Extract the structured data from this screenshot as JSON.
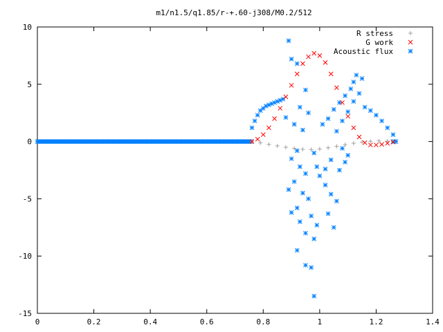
{
  "chart_data": {
    "type": "scatter",
    "title": "m1/n1.5/q1.85/r-+.60-j308/M0.2/512",
    "xlim": [
      0,
      1.4
    ],
    "ylim": [
      -15,
      10
    ],
    "xticks": [
      "0",
      "0.2",
      "0.4",
      "0.6",
      "0.8",
      "1",
      "1.2",
      "1.4"
    ],
    "yticks": [
      "10",
      "5",
      "0",
      "-5",
      "-10",
      "-15"
    ],
    "grid": false,
    "legend_position": "top-right",
    "series": [
      {
        "name": "R stress",
        "marker": "plus",
        "color": "#a0a0a0",
        "points": [
          [
            0.76,
            0.0
          ],
          [
            0.79,
            -0.12
          ],
          [
            0.82,
            -0.25
          ],
          [
            0.85,
            -0.38
          ],
          [
            0.88,
            -0.5
          ],
          [
            0.91,
            -0.6
          ],
          [
            0.94,
            -0.68
          ],
          [
            0.97,
            -0.7
          ],
          [
            1.0,
            -0.65
          ],
          [
            1.03,
            -0.55
          ],
          [
            1.06,
            -0.42
          ],
          [
            1.09,
            -0.28
          ],
          [
            1.12,
            -0.15
          ],
          [
            1.15,
            -0.05
          ],
          [
            1.18,
            0.02
          ],
          [
            1.21,
            0.05
          ],
          [
            1.24,
            0.04
          ],
          [
            1.26,
            0.02
          ]
        ]
      },
      {
        "name": "G work",
        "marker": "cross",
        "color": "#ff0000",
        "points": [
          [
            0.76,
            0.0
          ],
          [
            0.78,
            0.2
          ],
          [
            0.8,
            0.6
          ],
          [
            0.82,
            1.2
          ],
          [
            0.84,
            2.0
          ],
          [
            0.86,
            2.9
          ],
          [
            0.88,
            3.9
          ],
          [
            0.9,
            4.9
          ],
          [
            0.92,
            5.9
          ],
          [
            0.94,
            6.8
          ],
          [
            0.96,
            7.4
          ],
          [
            0.98,
            7.7
          ],
          [
            1.0,
            7.5
          ],
          [
            1.02,
            6.9
          ],
          [
            1.04,
            5.9
          ],
          [
            1.06,
            4.7
          ],
          [
            1.08,
            3.4
          ],
          [
            1.1,
            2.2
          ],
          [
            1.12,
            1.2
          ],
          [
            1.14,
            0.4
          ],
          [
            1.16,
            -0.1
          ],
          [
            1.18,
            -0.3
          ],
          [
            1.2,
            -0.3
          ],
          [
            1.22,
            -0.25
          ],
          [
            1.24,
            -0.15
          ],
          [
            1.26,
            -0.05
          ]
        ]
      },
      {
        "name": "Acoustic flux",
        "marker": "star",
        "color": "#0080ff",
        "points": [
          [
            0.76,
            1.2
          ],
          [
            0.77,
            1.8
          ],
          [
            0.78,
            2.3
          ],
          [
            0.79,
            2.7
          ],
          [
            0.8,
            2.9
          ],
          [
            0.81,
            3.1
          ],
          [
            0.82,
            3.2
          ],
          [
            0.83,
            3.3
          ],
          [
            0.84,
            3.4
          ],
          [
            0.85,
            3.5
          ],
          [
            0.86,
            3.6
          ],
          [
            0.87,
            3.7
          ],
          [
            1.16,
            3.0
          ],
          [
            1.18,
            2.7
          ],
          [
            1.2,
            2.3
          ],
          [
            1.22,
            1.8
          ],
          [
            1.24,
            1.2
          ],
          [
            1.26,
            0.6
          ],
          [
            0.89,
            8.8
          ],
          [
            0.9,
            7.2
          ],
          [
            0.92,
            6.8
          ],
          [
            0.95,
            4.5
          ],
          [
            0.93,
            3.0
          ],
          [
            0.96,
            2.5
          ],
          [
            0.88,
            2.1
          ],
          [
            0.91,
            1.5
          ],
          [
            0.94,
            1.0
          ],
          [
            0.92,
            -0.8
          ],
          [
            0.9,
            -1.5
          ],
          [
            0.93,
            -2.2
          ],
          [
            0.95,
            -2.8
          ],
          [
            0.91,
            -3.5
          ],
          [
            0.89,
            -4.2
          ],
          [
            0.94,
            -4.5
          ],
          [
            0.96,
            -5.0
          ],
          [
            0.92,
            -5.8
          ],
          [
            0.9,
            -6.2
          ],
          [
            0.97,
            -6.5
          ],
          [
            0.93,
            -7.0
          ],
          [
            0.99,
            -7.3
          ],
          [
            0.95,
            -8.0
          ],
          [
            0.98,
            -8.5
          ],
          [
            0.92,
            -9.5
          ],
          [
            0.95,
            -10.8
          ],
          [
            0.97,
            -11.0
          ],
          [
            0.98,
            -13.5
          ],
          [
            1.0,
            -3.0
          ],
          [
            1.02,
            -3.8
          ],
          [
            1.04,
            -4.6
          ],
          [
            1.06,
            -5.2
          ],
          [
            1.03,
            -6.3
          ],
          [
            1.05,
            -7.5
          ],
          [
            1.07,
            -2.5
          ],
          [
            1.09,
            -1.8
          ],
          [
            1.1,
            -1.2
          ],
          [
            1.08,
            -0.6
          ],
          [
            1.01,
            1.5
          ],
          [
            1.03,
            2.0
          ],
          [
            1.05,
            2.8
          ],
          [
            1.07,
            3.4
          ],
          [
            1.09,
            4.0
          ],
          [
            1.11,
            4.6
          ],
          [
            1.12,
            5.2
          ],
          [
            1.13,
            5.8
          ],
          [
            1.15,
            5.5
          ],
          [
            1.14,
            4.2
          ],
          [
            1.12,
            3.5
          ],
          [
            1.1,
            2.6
          ],
          [
            1.08,
            1.8
          ],
          [
            1.06,
            0.9
          ],
          [
            1.04,
            -1.6
          ],
          [
            1.02,
            -2.4
          ],
          [
            0.98,
            -1.0
          ],
          [
            0.99,
            -2.2
          ]
        ]
      }
    ]
  }
}
